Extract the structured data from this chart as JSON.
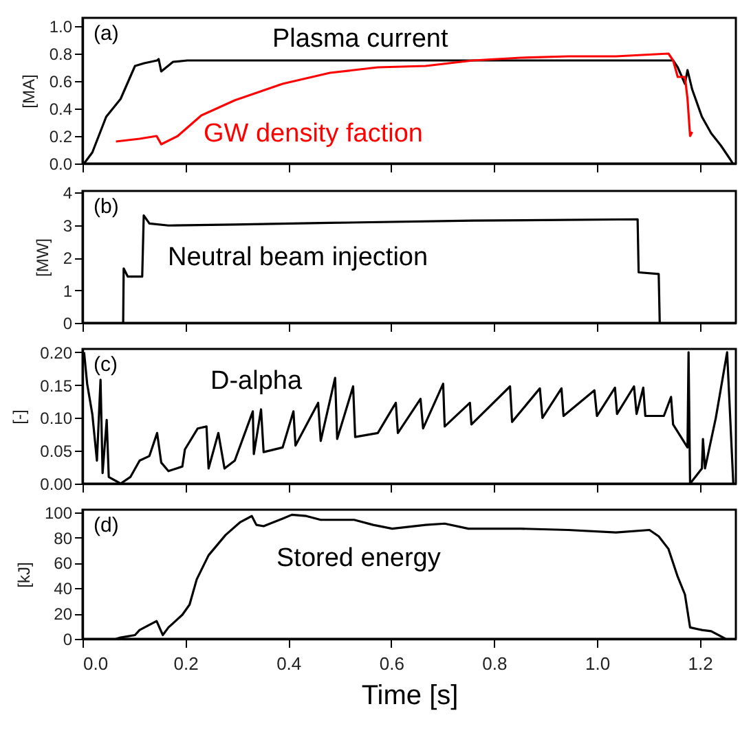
{
  "chart_data": [
    {
      "type": "line",
      "annotations": [
        "(a)"
      ],
      "ylabel": "[MA]",
      "xlim": [
        0,
        1.27
      ],
      "xticks": [
        0,
        0.2,
        0.4,
        0.6,
        0.8,
        1,
        1.2
      ],
      "ylim": [
        0,
        1.06
      ],
      "yticks": [
        {
          "value": 0,
          "label": "0.0"
        },
        0.2,
        0.4,
        0.6,
        0.8,
        {
          "value": 1,
          "label": "1.0"
        }
      ],
      "tick_labels": "y",
      "grid": false,
      "series": [
        {
          "name": "Plasma current",
          "color": "#000000",
          "x": [
            0.003,
            0.019,
            0.046,
            0.074,
            0.102,
            0.12,
            0.145,
            0.148,
            0.153,
            0.176,
            0.204,
            0.4,
            0.6,
            0.8,
            1.0,
            1.148,
            1.157,
            1.171,
            1.176,
            1.185,
            1.204,
            1.222,
            1.241,
            1.259,
            1.264
          ],
          "values": [
            0,
            0.08,
            0.34,
            0.47,
            0.71,
            0.73,
            0.75,
            0.76,
            0.67,
            0.74,
            0.75,
            0.75,
            0.75,
            0.75,
            0.75,
            0.75,
            0.7,
            0.58,
            0.68,
            0.54,
            0.34,
            0.22,
            0.13,
            0.03,
            0
          ]
        },
        {
          "name": "GW density faction",
          "color": "#ff0000",
          "x": [
            0.065,
            0.111,
            0.144,
            0.153,
            0.185,
            0.231,
            0.296,
            0.389,
            0.481,
            0.574,
            0.667,
            0.759,
            0.852,
            0.944,
            1.037,
            1.139,
            1.148,
            1.157,
            1.171,
            1.176,
            1.181,
            1.185
          ],
          "values": [
            0.16,
            0.18,
            0.2,
            0.14,
            0.2,
            0.35,
            0.46,
            0.58,
            0.66,
            0.7,
            0.71,
            0.75,
            0.77,
            0.78,
            0.78,
            0.8,
            0.75,
            0.63,
            0.63,
            0.47,
            0.2,
            0.23
          ]
        }
      ]
    },
    {
      "type": "line",
      "annotations": [
        "(b)"
      ],
      "ylabel": "[MW]",
      "xlim": [
        0,
        1.27
      ],
      "xticks": [
        0,
        0.2,
        0.4,
        0.6,
        0.8,
        1,
        1.2
      ],
      "ylim": [
        0,
        4.05
      ],
      "yticks": [
        0,
        1,
        2,
        3,
        4
      ],
      "tick_labels": "y",
      "grid": false,
      "series": [
        {
          "name": "Neutral beam injection",
          "color": "#000000",
          "x": [
            0.079,
            0.08,
            0.088,
            0.116,
            0.119,
            0.13,
            0.167,
            0.296,
            0.481,
            0.759,
            1.079,
            1.081,
            1.12,
            1.122
          ],
          "values": [
            0,
            1.67,
            1.42,
            1.42,
            3.3,
            3.05,
            2.99,
            3.02,
            3.07,
            3.14,
            3.18,
            1.55,
            1.5,
            0
          ]
        }
      ]
    },
    {
      "type": "line",
      "annotations": [
        "(c)"
      ],
      "ylabel": "[-]",
      "xlim": [
        0,
        1.27
      ],
      "xticks": [
        0,
        0.2,
        0.4,
        0.6,
        0.8,
        1,
        1.2
      ],
      "ylim": [
        0,
        0.205
      ],
      "yticks": [
        {
          "value": 0,
          "label": "0.00"
        },
        {
          "value": 0.05,
          "label": "0.05"
        },
        {
          "value": 0.1,
          "label": "0.10"
        },
        {
          "value": 0.15,
          "label": "0.15"
        },
        {
          "value": 0.2,
          "label": "0.20"
        }
      ],
      "tick_labels": "y",
      "grid": false,
      "series": [
        {
          "name": "D-alpha",
          "color": "#000000",
          "x": [
            0.003,
            0.009,
            0.019,
            0.028,
            0.035,
            0.039,
            0.047,
            0.051,
            0.074,
            0.093,
            0.111,
            0.13,
            0.145,
            0.153,
            0.167,
            0.194,
            0.199,
            0.224,
            0.241,
            0.245,
            0.264,
            0.276,
            0.296,
            0.331,
            0.333,
            0.347,
            0.352,
            0.389,
            0.41,
            0.414,
            0.458,
            0.463,
            0.491,
            0.495,
            0.526,
            0.53,
            0.574,
            0.609,
            0.613,
            0.657,
            0.662,
            0.701,
            0.704,
            0.753,
            0.756,
            0.831,
            0.835,
            0.889,
            0.894,
            0.931,
            0.935,
            0.995,
            1.0,
            1.035,
            1.039,
            1.072,
            1.077,
            1.09,
            1.094,
            1.13,
            1.144,
            1.148,
            1.176,
            1.178,
            1.181,
            1.204,
            1.206,
            1.21,
            1.231,
            1.253,
            1.265
          ],
          "values": [
            0.2,
            0.152,
            0.106,
            0.035,
            0.158,
            0.016,
            0.097,
            0.01,
            0,
            0.01,
            0.035,
            0.042,
            0.077,
            0.032,
            0.019,
            0.026,
            0.052,
            0.084,
            0.087,
            0.023,
            0.077,
            0.023,
            0.035,
            0.11,
            0.045,
            0.113,
            0.048,
            0.055,
            0.11,
            0.058,
            0.123,
            0.065,
            0.161,
            0.068,
            0.148,
            0.071,
            0.077,
            0.123,
            0.077,
            0.129,
            0.084,
            0.152,
            0.087,
            0.123,
            0.09,
            0.148,
            0.094,
            0.145,
            0.1,
            0.145,
            0.103,
            0.142,
            0.103,
            0.146,
            0.106,
            0.148,
            0.106,
            0.146,
            0.103,
            0.103,
            0.132,
            0.09,
            0.055,
            0.2,
            0,
            0.023,
            0.068,
            0.023,
            0.1,
            0.2,
            0
          ]
        }
      ]
    },
    {
      "type": "line",
      "annotations": [
        "(d)"
      ],
      "ylabel": "[kJ]",
      "xlabel": "Time [s]",
      "xlim": [
        0,
        1.27
      ],
      "xticks": [
        {
          "value": 0,
          "label": "0.0"
        },
        0.2,
        0.4,
        0.6,
        0.8,
        {
          "value": 1,
          "label": "1.0"
        },
        1.2
      ],
      "ylim": [
        0,
        102
      ],
      "yticks": [
        0,
        20,
        40,
        60,
        80,
        100
      ],
      "grid": false,
      "series": [
        {
          "name": "Stored energy",
          "color": "#000000",
          "x": [
            0.065,
            0.074,
            0.102,
            0.111,
            0.144,
            0.156,
            0.167,
            0.194,
            0.208,
            0.222,
            0.245,
            0.278,
            0.306,
            0.329,
            0.338,
            0.352,
            0.389,
            0.407,
            0.435,
            0.463,
            0.528,
            0.565,
            0.602,
            0.667,
            0.704,
            0.75,
            0.852,
            0.944,
            1.037,
            1.102,
            1.12,
            1.139,
            1.157,
            1.171,
            1.181,
            1.204,
            1.222,
            1.25
          ],
          "values": [
            0,
            1,
            3,
            7,
            14,
            3,
            9,
            19,
            27,
            47,
            66,
            82,
            92,
            97,
            90,
            89,
            95,
            98,
            97,
            94,
            94,
            90,
            87,
            90,
            91,
            87,
            87,
            86,
            84,
            86,
            81,
            71,
            49,
            35,
            9,
            7,
            6,
            0
          ]
        }
      ]
    }
  ]
}
